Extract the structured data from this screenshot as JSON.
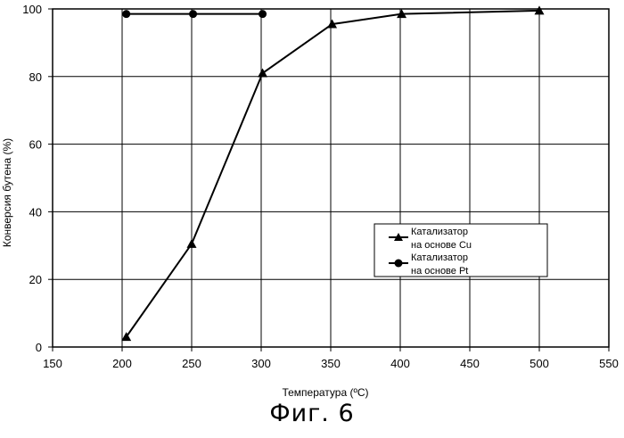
{
  "figure_caption": "Фиг. 6",
  "chart_data": {
    "type": "line",
    "xlabel": "Температура (ºC)",
    "ylabel": "Конверсия бутена (%)",
    "xlim": [
      150,
      550
    ],
    "ylim": [
      0,
      100
    ],
    "x_ticks": [
      150,
      200,
      250,
      300,
      350,
      400,
      450,
      500,
      550
    ],
    "y_ticks": [
      0,
      20,
      40,
      60,
      80,
      100
    ],
    "grid": true,
    "legend_position": "right",
    "series": [
      {
        "name": "Катализатор на основе Cu",
        "marker": "triangle",
        "color": "#000000",
        "points": [
          [
            203,
            3
          ],
          [
            250,
            30.5
          ],
          [
            301,
            81
          ],
          [
            351,
            95.5
          ],
          [
            401,
            98.5
          ],
          [
            500,
            99.5
          ]
        ]
      },
      {
        "name": "Катализатор на основе Pt",
        "marker": "circle",
        "color": "#000000",
        "points": [
          [
            203,
            98.5
          ],
          [
            251,
            98.5
          ],
          [
            301,
            98.5
          ]
        ]
      }
    ],
    "legend": [
      {
        "line1": "Катализатор",
        "line2": "на основе Cu"
      },
      {
        "line1": "Катализатор",
        "line2": "на основе Pt"
      }
    ]
  }
}
